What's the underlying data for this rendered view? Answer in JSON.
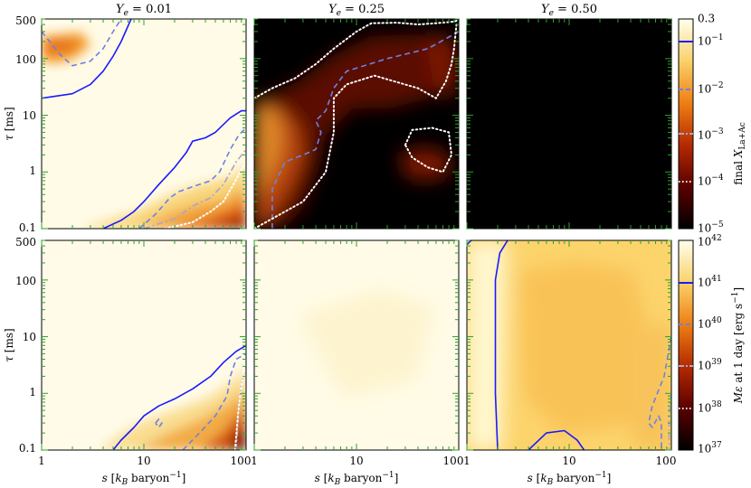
{
  "figure": {
    "column_titles": [
      "Y_e = 0.01",
      "Y_e = 0.25",
      "Y_e = 0.50"
    ]
  },
  "chart_data": [
    {
      "type": "heatmap",
      "title": "Y_e = 0.01",
      "quantity": "final X_La+Ac",
      "xlabel": "",
      "ylabel": "τ [ms]",
      "xscale": "log",
      "yscale": "log",
      "xlim": [
        1,
        100
      ],
      "ylim": [
        0.1,
        500
      ],
      "xticks": [
        "",
        "",
        ""
      ],
      "yticks": [
        "0.1",
        "1",
        "10",
        "100",
        "500"
      ],
      "contours": [
        {
          "level": "1e-1",
          "style": "solid",
          "color": "#1a1aff",
          "points": [
            [
              1,
              20
            ],
            [
              2,
              24
            ],
            [
              3,
              35
            ],
            [
              4,
              60
            ],
            [
              5,
              110
            ],
            [
              6,
              200
            ],
            [
              7.5,
              500
            ]
          ]
        },
        {
          "level": "1e-1",
          "style": "solid",
          "color": "#1a1aff",
          "points": [
            [
              4,
              0.1
            ],
            [
              6,
              0.14
            ],
            [
              8,
              0.2
            ],
            [
              10,
              0.3
            ],
            [
              14,
              0.6
            ],
            [
              20,
              1.2
            ],
            [
              26,
              2.2
            ],
            [
              30,
              3.5
            ],
            [
              40,
              4
            ],
            [
              50,
              5
            ],
            [
              70,
              9
            ],
            [
              90,
              12
            ],
            [
              100,
              12
            ]
          ]
        },
        {
          "level": "1e-2",
          "style": "dashed",
          "color": "#6b82e6",
          "points": [
            [
              1,
              300
            ],
            [
              1.5,
              120
            ],
            [
              2,
              75
            ],
            [
              3,
              90
            ],
            [
              4,
              150
            ],
            [
              5,
              300
            ],
            [
              6,
              500
            ]
          ]
        },
        {
          "level": "1e-2",
          "style": "dashed",
          "color": "#6b82e6",
          "points": [
            [
              9,
              0.1
            ],
            [
              13,
              0.18
            ],
            [
              18,
              0.35
            ],
            [
              22,
              0.45
            ],
            [
              30,
              0.55
            ],
            [
              45,
              0.7
            ],
            [
              55,
              1
            ],
            [
              70,
              2.5
            ],
            [
              85,
              4.5
            ],
            [
              100,
              6
            ]
          ]
        },
        {
          "level": "1e-3",
          "style": "dashdot",
          "color": "#a9a4c9",
          "points": [
            [
              10,
              0.1
            ],
            [
              20,
              0.15
            ],
            [
              30,
              0.25
            ],
            [
              45,
              0.35
            ],
            [
              60,
              0.6
            ],
            [
              80,
              1.5
            ],
            [
              100,
              2.5
            ]
          ]
        },
        {
          "level": "1e-4",
          "style": "dotted",
          "color": "#ffffff",
          "points": [
            [
              16,
              0.1
            ],
            [
              30,
              0.13
            ],
            [
              45,
              0.2
            ],
            [
              60,
              0.3
            ],
            [
              75,
              0.6
            ],
            [
              90,
              1.1
            ],
            [
              100,
              1.5
            ]
          ]
        },
        {
          "level": "1e-4",
          "style": "dotted",
          "color": "#ffffff",
          "points": [
            [
              1,
              420
            ],
            [
              2,
              440
            ],
            [
              3,
              480
            ],
            [
              3.5,
              500
            ]
          ]
        }
      ]
    },
    {
      "type": "heatmap",
      "title": "Y_e = 0.25",
      "quantity": "final X_La+Ac",
      "xlabel": "",
      "ylabel": "",
      "xscale": "log",
      "yscale": "log",
      "xlim": [
        1,
        100
      ],
      "ylim": [
        0.1,
        500
      ],
      "contours": [
        {
          "level": "1e-2",
          "style": "dashed",
          "color": "#6b82e6",
          "points": [
            [
              1.5,
              0.1
            ],
            [
              1.5,
              0.5
            ],
            [
              2,
              1.5
            ],
            [
              3,
              2
            ],
            [
              4,
              2.5
            ],
            [
              4.5,
              5
            ],
            [
              4,
              8
            ],
            [
              5,
              12
            ],
            [
              6,
              30
            ],
            [
              8,
              60
            ],
            [
              20,
              100
            ],
            [
              50,
              150
            ],
            [
              100,
              300
            ]
          ]
        },
        {
          "level": "1e-4",
          "style": "dotted",
          "color": "#ffffff",
          "points": [
            [
              1,
              20
            ],
            [
              1.5,
              30
            ],
            [
              2.5,
              45
            ],
            [
              4,
              80
            ],
            [
              6,
              150
            ],
            [
              10,
              300
            ],
            [
              14,
              420
            ],
            [
              25,
              430
            ],
            [
              40,
              400
            ],
            [
              60,
              420
            ],
            [
              90,
              450
            ],
            [
              100,
              480
            ]
          ]
        },
        {
          "level": "1e-4",
          "style": "dotted",
          "color": "#ffffff",
          "points": [
            [
              1,
              0.1
            ],
            [
              3,
              0.3
            ],
            [
              5,
              1
            ],
            [
              6,
              5
            ],
            [
              6,
              20
            ],
            [
              8,
              35
            ],
            [
              15,
              50
            ],
            [
              40,
              30
            ],
            [
              60,
              20
            ],
            [
              75,
              40
            ],
            [
              85,
              80
            ],
            [
              90,
              150
            ],
            [
              95,
              400
            ]
          ]
        },
        {
          "level": "1e-4",
          "style": "dotted",
          "color": "#ffffff",
          "points": [
            [
              30,
              3
            ],
            [
              35,
              5.5
            ],
            [
              55,
              6
            ],
            [
              80,
              5
            ],
            [
              85,
              2
            ],
            [
              70,
              1
            ],
            [
              50,
              1.2
            ],
            [
              35,
              1.8
            ],
            [
              30,
              3
            ]
          ]
        }
      ]
    },
    {
      "type": "heatmap",
      "title": "Y_e = 0.50",
      "quantity": "final X_La+Ac",
      "xlabel": "",
      "ylabel": "",
      "xscale": "log",
      "yscale": "log",
      "xlim": [
        1,
        100
      ],
      "ylim": [
        0.1,
        500
      ],
      "contours": []
    },
    {
      "type": "heatmap",
      "title": "",
      "quantity": "Mε at 1 day [erg s^-1]",
      "xlabel": "s [k_B baryon^-1]",
      "ylabel": "τ [ms]",
      "xscale": "log",
      "yscale": "log",
      "xlim": [
        1,
        100
      ],
      "ylim": [
        0.1,
        500
      ],
      "xticks": [
        "1",
        "10",
        "100"
      ],
      "yticks": [
        "0.1",
        "1",
        "10",
        "100",
        "500"
      ],
      "contours": [
        {
          "level": "1e41",
          "style": "solid",
          "color": "#1a1aff",
          "points": [
            [
              5,
              0.1
            ],
            [
              6,
              0.15
            ],
            [
              8,
              0.25
            ],
            [
              10,
              0.4
            ],
            [
              14,
              0.6
            ],
            [
              20,
              0.8
            ],
            [
              30,
              1.2
            ],
            [
              45,
              2
            ],
            [
              60,
              3.5
            ],
            [
              80,
              5.5
            ],
            [
              100,
              7
            ]
          ]
        },
        {
          "level": "1e40",
          "style": "dashed",
          "color": "#6b82e6",
          "points": [
            [
              24,
              0.1
            ],
            [
              35,
              0.2
            ],
            [
              50,
              0.4
            ],
            [
              65,
              0.9
            ],
            [
              70,
              2
            ],
            [
              80,
              4
            ],
            [
              100,
              5
            ]
          ]
        },
        {
          "level": "1e40",
          "style": "dashed",
          "color": "#6b82e6",
          "points": [
            [
              13,
              0.3
            ],
            [
              14,
              0.35
            ],
            [
              15,
              0.3
            ],
            [
              14,
              0.25
            ],
            [
              13,
              0.3
            ]
          ]
        },
        {
          "level": "1e39",
          "style": "dashdot",
          "color": "#a9a4c9",
          "points": [
            [
              80,
              0.1
            ],
            [
              85,
              0.5
            ],
            [
              90,
              1.5
            ],
            [
              100,
              3
            ]
          ]
        },
        {
          "level": "1e38",
          "style": "dotted",
          "color": "#ffffff",
          "points": [
            [
              78,
              0.1
            ],
            [
              83,
              0.4
            ],
            [
              88,
              1
            ],
            [
              95,
              2.5
            ],
            [
              100,
              3.5
            ]
          ]
        }
      ]
    },
    {
      "type": "heatmap",
      "title": "",
      "quantity": "Mε at 1 day [erg s^-1]",
      "xlabel": "s [k_B baryon^-1]",
      "ylabel": "",
      "xscale": "log",
      "yscale": "log",
      "xlim": [
        1,
        100
      ],
      "ylim": [
        0.1,
        500
      ],
      "xticks": [
        "1",
        "10",
        "100"
      ],
      "contours": []
    },
    {
      "type": "heatmap",
      "title": "",
      "quantity": "Mε at 1 day [erg s^-1]",
      "xlabel": "s [k_B baryon^-1]",
      "ylabel": "",
      "xscale": "log",
      "yscale": "log",
      "xlim": [
        1,
        100
      ],
      "ylim": [
        0.1,
        500
      ],
      "xticks": [
        "1",
        "10",
        "100"
      ],
      "contours": [
        {
          "level": "1e41",
          "style": "solid",
          "color": "#1a1aff",
          "points": [
            [
              2,
              0.1
            ],
            [
              1.9,
              1
            ],
            [
              1.9,
              10
            ],
            [
              1.9,
              100
            ],
            [
              2.1,
              300
            ],
            [
              2.5,
              500
            ]
          ]
        },
        {
          "level": "1e41",
          "style": "solid",
          "color": "#1a1aff",
          "points": [
            [
              1,
              420
            ],
            [
              1.1,
              500
            ]
          ]
        },
        {
          "level": "1e41",
          "style": "solid",
          "color": "#1a1aff",
          "points": [
            [
              4,
              0.1
            ],
            [
              6,
              0.2
            ],
            [
              9,
              0.22
            ],
            [
              12,
              0.15
            ],
            [
              14,
              0.1
            ]
          ]
        },
        {
          "level": "1e40",
          "style": "dashed",
          "color": "#6b82e6",
          "points": [
            [
              100,
              10
            ],
            [
              85,
              2
            ],
            [
              65,
              0.6
            ],
            [
              60,
              0.3
            ],
            [
              65,
              0.25
            ],
            [
              75,
              0.4
            ],
            [
              80,
              0.3
            ],
            [
              80,
              0.1
            ]
          ]
        },
        {
          "level": "1e39",
          "style": "dashdot",
          "color": "#a9a4c9",
          "points": [
            [
              100,
              1
            ],
            [
              95,
              0.4
            ],
            [
              95,
              0.1
            ]
          ]
        }
      ]
    }
  ],
  "colorbars": [
    {
      "label": "final X_La+Ac",
      "tick_labels": [
        "0.3",
        "10^-1",
        "10^-2",
        "10^-3",
        "10^-4",
        "10^-5"
      ],
      "range": [
        1e-05,
        0.3
      ]
    },
    {
      "label": "Mε at 1 day [erg s^-1]",
      "tick_labels": [
        "10^42",
        "10^41",
        "10^40",
        "10^39",
        "10^38",
        "10^37"
      ],
      "range": [
        1e+37,
        1e+42
      ]
    }
  ],
  "colors": {
    "hot_low": "#000000",
    "hot_mid1": "#7a0000",
    "hot_mid2": "#cc3a00",
    "hot_mid3": "#f08a1a",
    "hot_mid4": "#f7cf60",
    "hot_high": "#fff9d0",
    "hot_top": "#ffffee",
    "contour_solid": "#1a1aff",
    "contour_dashed": "#6b82e6",
    "contour_dashdot": "#a9a4c9",
    "contour_dotted": "#ffffff",
    "tick_color": "#2ca02c"
  }
}
